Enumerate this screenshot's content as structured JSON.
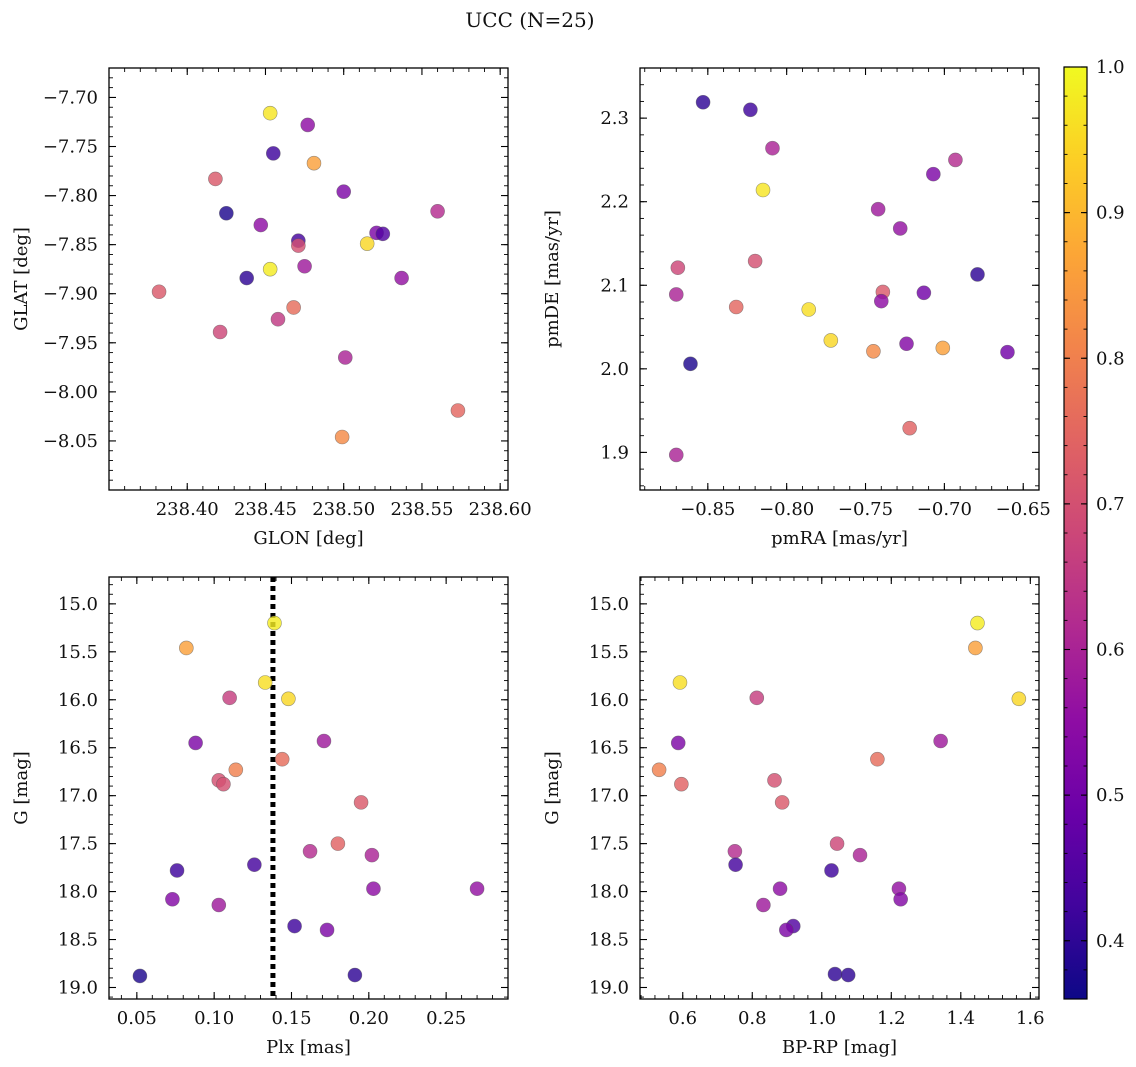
{
  "figure": {
    "title": "UCC (N=25)"
  },
  "colorbar": {
    "ticks": [
      "1.0",
      "0.9",
      "0.8",
      "0.7",
      "0.6",
      "0.5",
      "0.4"
    ],
    "tick_values": [
      1.0,
      0.9,
      0.8,
      0.7,
      0.6,
      0.5,
      0.4
    ],
    "range": [
      0.36,
      1.0
    ],
    "colormap": "plasma"
  },
  "chart_data": [
    {
      "type": "scatter",
      "xlabel": "GLON [deg]",
      "ylabel": "GLAT [deg]",
      "xlim": [
        238.35,
        238.605
      ],
      "ylim": [
        -8.1,
        -7.67
      ],
      "xticks": [
        238.4,
        238.45,
        238.5,
        238.55,
        238.6
      ],
      "xtick_labels": [
        "238.40",
        "238.45",
        "238.50",
        "238.55",
        "238.60"
      ],
      "yticks": [
        -7.7,
        -7.75,
        -7.8,
        -7.85,
        -7.9,
        -7.95,
        -8.0,
        -8.05
      ],
      "ytick_labels": [
        "−7.70",
        "−7.75",
        "−7.80",
        "−7.85",
        "−7.90",
        "−7.95",
        "−8.00",
        "−8.05"
      ],
      "points": [
        {
          "x": 238.453,
          "y": -7.716,
          "c": 0.97
        },
        {
          "x": 238.477,
          "y": -7.728,
          "c": 0.55
        },
        {
          "x": 238.455,
          "y": -7.757,
          "c": 0.42
        },
        {
          "x": 238.481,
          "y": -7.767,
          "c": 0.86
        },
        {
          "x": 238.418,
          "y": -7.783,
          "c": 0.72
        },
        {
          "x": 238.5,
          "y": -7.796,
          "c": 0.52
        },
        {
          "x": 238.425,
          "y": -7.818,
          "c": 0.38
        },
        {
          "x": 238.56,
          "y": -7.816,
          "c": 0.62
        },
        {
          "x": 238.447,
          "y": -7.83,
          "c": 0.55
        },
        {
          "x": 238.521,
          "y": -7.838,
          "c": 0.52
        },
        {
          "x": 238.525,
          "y": -7.839,
          "c": 0.45
        },
        {
          "x": 238.471,
          "y": -7.846,
          "c": 0.43
        },
        {
          "x": 238.471,
          "y": -7.851,
          "c": 0.7
        },
        {
          "x": 238.515,
          "y": -7.849,
          "c": 0.95
        },
        {
          "x": 238.475,
          "y": -7.872,
          "c": 0.58
        },
        {
          "x": 238.453,
          "y": -7.875,
          "c": 0.98
        },
        {
          "x": 238.438,
          "y": -7.884,
          "c": 0.4
        },
        {
          "x": 238.537,
          "y": -7.884,
          "c": 0.56
        },
        {
          "x": 238.382,
          "y": -7.898,
          "c": 0.72
        },
        {
          "x": 238.468,
          "y": -7.914,
          "c": 0.76
        },
        {
          "x": 238.458,
          "y": -7.926,
          "c": 0.65
        },
        {
          "x": 238.421,
          "y": -7.939,
          "c": 0.68
        },
        {
          "x": 238.501,
          "y": -7.965,
          "c": 0.6
        },
        {
          "x": 238.573,
          "y": -8.019,
          "c": 0.75
        },
        {
          "x": 238.499,
          "y": -8.046,
          "c": 0.82
        }
      ]
    },
    {
      "type": "scatter",
      "xlabel": "pmRA [mas/yr]",
      "ylabel": "pmDE [mas/yr]",
      "xlim": [
        -0.893,
        -0.64
      ],
      "ylim": [
        1.855,
        2.36
      ],
      "xticks": [
        -0.85,
        -0.8,
        -0.75,
        -0.7,
        -0.65
      ],
      "xtick_labels": [
        "−0.85",
        "−0.80",
        "−0.75",
        "−0.70",
        "−0.65"
      ],
      "yticks": [
        1.9,
        2.0,
        2.1,
        2.2,
        2.3
      ],
      "ytick_labels": [
        "1.9",
        "2.0",
        "2.1",
        "2.2",
        "2.3"
      ],
      "points": [
        {
          "x": -0.853,
          "y": 2.319,
          "c": 0.4
        },
        {
          "x": -0.823,
          "y": 2.31,
          "c": 0.42
        },
        {
          "x": -0.809,
          "y": 2.264,
          "c": 0.6
        },
        {
          "x": -0.693,
          "y": 2.25,
          "c": 0.62
        },
        {
          "x": -0.707,
          "y": 2.233,
          "c": 0.52
        },
        {
          "x": -0.815,
          "y": 2.214,
          "c": 0.97
        },
        {
          "x": -0.742,
          "y": 2.191,
          "c": 0.58
        },
        {
          "x": -0.728,
          "y": 2.168,
          "c": 0.56
        },
        {
          "x": -0.869,
          "y": 2.121,
          "c": 0.68
        },
        {
          "x": -0.82,
          "y": 2.129,
          "c": 0.7
        },
        {
          "x": -0.679,
          "y": 2.113,
          "c": 0.4
        },
        {
          "x": -0.87,
          "y": 2.089,
          "c": 0.6
        },
        {
          "x": -0.739,
          "y": 2.092,
          "c": 0.72
        },
        {
          "x": -0.74,
          "y": 2.081,
          "c": 0.55
        },
        {
          "x": -0.713,
          "y": 2.091,
          "c": 0.5
        },
        {
          "x": -0.832,
          "y": 2.074,
          "c": 0.75
        },
        {
          "x": -0.786,
          "y": 2.071,
          "c": 0.96
        },
        {
          "x": -0.772,
          "y": 2.034,
          "c": 0.95
        },
        {
          "x": -0.724,
          "y": 2.03,
          "c": 0.53
        },
        {
          "x": -0.745,
          "y": 2.021,
          "c": 0.82
        },
        {
          "x": -0.701,
          "y": 2.025,
          "c": 0.86
        },
        {
          "x": -0.66,
          "y": 2.02,
          "c": 0.5
        },
        {
          "x": -0.861,
          "y": 2.006,
          "c": 0.38
        },
        {
          "x": -0.722,
          "y": 1.929,
          "c": 0.74
        },
        {
          "x": -0.87,
          "y": 1.897,
          "c": 0.6
        }
      ]
    },
    {
      "type": "scatter",
      "xlabel": "Plx [mas]",
      "ylabel": "G [mag]",
      "xlim": [
        0.032,
        0.29
      ],
      "ylim": [
        19.12,
        14.72
      ],
      "y_inverted": true,
      "xticks": [
        0.05,
        0.1,
        0.15,
        0.2,
        0.25
      ],
      "xtick_labels": [
        "0.05",
        "0.10",
        "0.15",
        "0.20",
        "0.25"
      ],
      "yticks": [
        15.0,
        15.5,
        16.0,
        16.5,
        17.0,
        17.5,
        18.0,
        18.5,
        19.0
      ],
      "ytick_labels": [
        "15.0",
        "15.5",
        "16.0",
        "16.5",
        "17.0",
        "17.5",
        "18.0",
        "18.5",
        "19.0"
      ],
      "vline": {
        "x": 0.138,
        "style": "dotted",
        "color": "#000000"
      },
      "points": [
        {
          "x": 0.139,
          "y": 15.2,
          "c": 0.98
        },
        {
          "x": 0.082,
          "y": 15.46,
          "c": 0.86
        },
        {
          "x": 0.133,
          "y": 15.82,
          "c": 0.96
        },
        {
          "x": 0.148,
          "y": 15.99,
          "c": 0.95
        },
        {
          "x": 0.11,
          "y": 15.98,
          "c": 0.66
        },
        {
          "x": 0.088,
          "y": 16.45,
          "c": 0.52
        },
        {
          "x": 0.171,
          "y": 16.43,
          "c": 0.58
        },
        {
          "x": 0.144,
          "y": 16.62,
          "c": 0.76
        },
        {
          "x": 0.114,
          "y": 16.73,
          "c": 0.8
        },
        {
          "x": 0.103,
          "y": 16.84,
          "c": 0.7
        },
        {
          "x": 0.106,
          "y": 16.88,
          "c": 0.7
        },
        {
          "x": 0.195,
          "y": 17.07,
          "c": 0.72
        },
        {
          "x": 0.18,
          "y": 17.5,
          "c": 0.74
        },
        {
          "x": 0.162,
          "y": 17.58,
          "c": 0.62
        },
        {
          "x": 0.202,
          "y": 17.62,
          "c": 0.6
        },
        {
          "x": 0.126,
          "y": 17.72,
          "c": 0.43
        },
        {
          "x": 0.076,
          "y": 17.78,
          "c": 0.42
        },
        {
          "x": 0.203,
          "y": 17.97,
          "c": 0.55
        },
        {
          "x": 0.27,
          "y": 17.97,
          "c": 0.56
        },
        {
          "x": 0.073,
          "y": 18.08,
          "c": 0.53
        },
        {
          "x": 0.103,
          "y": 18.14,
          "c": 0.58
        },
        {
          "x": 0.152,
          "y": 18.36,
          "c": 0.42
        },
        {
          "x": 0.173,
          "y": 18.4,
          "c": 0.52
        },
        {
          "x": 0.052,
          "y": 18.88,
          "c": 0.38
        },
        {
          "x": 0.191,
          "y": 18.87,
          "c": 0.4
        }
      ]
    },
    {
      "type": "scatter",
      "xlabel": "BP-RP [mag]",
      "ylabel": "G [mag]",
      "xlim": [
        0.477,
        1.625
      ],
      "ylim": [
        19.12,
        14.72
      ],
      "y_inverted": true,
      "xticks": [
        0.6,
        0.8,
        1.0,
        1.2,
        1.4,
        1.6
      ],
      "xtick_labels": [
        "0.6",
        "0.8",
        "1.0",
        "1.2",
        "1.4",
        "1.6"
      ],
      "yticks": [
        15.0,
        15.5,
        16.0,
        16.5,
        17.0,
        17.5,
        18.0,
        18.5,
        19.0
      ],
      "ytick_labels": [
        "15.0",
        "15.5",
        "16.0",
        "16.5",
        "17.0",
        "17.5",
        "18.0",
        "18.5",
        "19.0"
      ],
      "points": [
        {
          "x": 1.448,
          "y": 15.2,
          "c": 0.98
        },
        {
          "x": 1.442,
          "y": 15.46,
          "c": 0.86
        },
        {
          "x": 0.592,
          "y": 15.82,
          "c": 0.96
        },
        {
          "x": 1.567,
          "y": 15.99,
          "c": 0.95
        },
        {
          "x": 0.813,
          "y": 15.98,
          "c": 0.66
        },
        {
          "x": 0.587,
          "y": 16.45,
          "c": 0.52
        },
        {
          "x": 1.342,
          "y": 16.43,
          "c": 0.58
        },
        {
          "x": 1.16,
          "y": 16.62,
          "c": 0.76
        },
        {
          "x": 0.532,
          "y": 16.73,
          "c": 0.8
        },
        {
          "x": 0.596,
          "y": 16.88,
          "c": 0.74
        },
        {
          "x": 0.864,
          "y": 16.84,
          "c": 0.7
        },
        {
          "x": 0.886,
          "y": 17.07,
          "c": 0.72
        },
        {
          "x": 1.044,
          "y": 17.5,
          "c": 0.68
        },
        {
          "x": 0.75,
          "y": 17.58,
          "c": 0.62
        },
        {
          "x": 1.11,
          "y": 17.62,
          "c": 0.6
        },
        {
          "x": 0.752,
          "y": 17.72,
          "c": 0.43
        },
        {
          "x": 1.028,
          "y": 17.78,
          "c": 0.42
        },
        {
          "x": 0.88,
          "y": 17.97,
          "c": 0.55
        },
        {
          "x": 1.222,
          "y": 17.97,
          "c": 0.56
        },
        {
          "x": 1.227,
          "y": 18.08,
          "c": 0.53
        },
        {
          "x": 0.832,
          "y": 18.14,
          "c": 0.58
        },
        {
          "x": 0.918,
          "y": 18.36,
          "c": 0.45
        },
        {
          "x": 0.898,
          "y": 18.4,
          "c": 0.52
        },
        {
          "x": 1.038,
          "y": 18.86,
          "c": 0.4
        },
        {
          "x": 1.076,
          "y": 18.87,
          "c": 0.4
        }
      ]
    }
  ]
}
